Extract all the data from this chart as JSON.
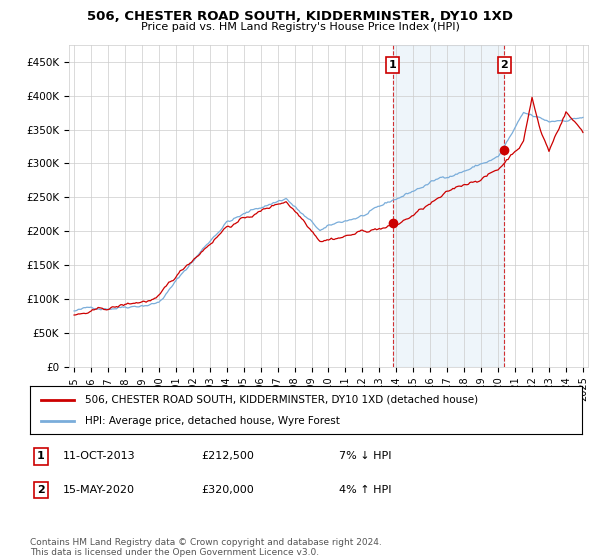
{
  "title": "506, CHESTER ROAD SOUTH, KIDDERMINSTER, DY10 1XD",
  "subtitle": "Price paid vs. HM Land Registry's House Price Index (HPI)",
  "ylabel_ticks": [
    "£0",
    "£50K",
    "£100K",
    "£150K",
    "£200K",
    "£250K",
    "£300K",
    "£350K",
    "£400K",
    "£450K"
  ],
  "ylabel_values": [
    0,
    50000,
    100000,
    150000,
    200000,
    250000,
    300000,
    350000,
    400000,
    450000
  ],
  "ylim": [
    0,
    475000
  ],
  "xlim_start": 1994.7,
  "xlim_end": 2025.3,
  "marker1_x": 2013.78,
  "marker1_y": 212500,
  "marker1_label": "1",
  "marker2_x": 2020.37,
  "marker2_y": 320000,
  "marker2_label": "2",
  "legend_red_label": "506, CHESTER ROAD SOUTH, KIDDERMINSTER, DY10 1XD (detached house)",
  "legend_blue_label": "HPI: Average price, detached house, Wyre Forest",
  "annotation1_num": "1",
  "annotation1_date": "11-OCT-2013",
  "annotation1_price": "£212,500",
  "annotation1_hpi": "7% ↓ HPI",
  "annotation2_num": "2",
  "annotation2_date": "15-MAY-2020",
  "annotation2_price": "£320,000",
  "annotation2_hpi": "4% ↑ HPI",
  "footer": "Contains HM Land Registry data © Crown copyright and database right 2024.\nThis data is licensed under the Open Government Licence v3.0.",
  "red_color": "#cc0000",
  "blue_color": "#7aadda",
  "shade_color": "#ddeeff",
  "grid_color": "#cccccc",
  "background_color": "#ffffff"
}
